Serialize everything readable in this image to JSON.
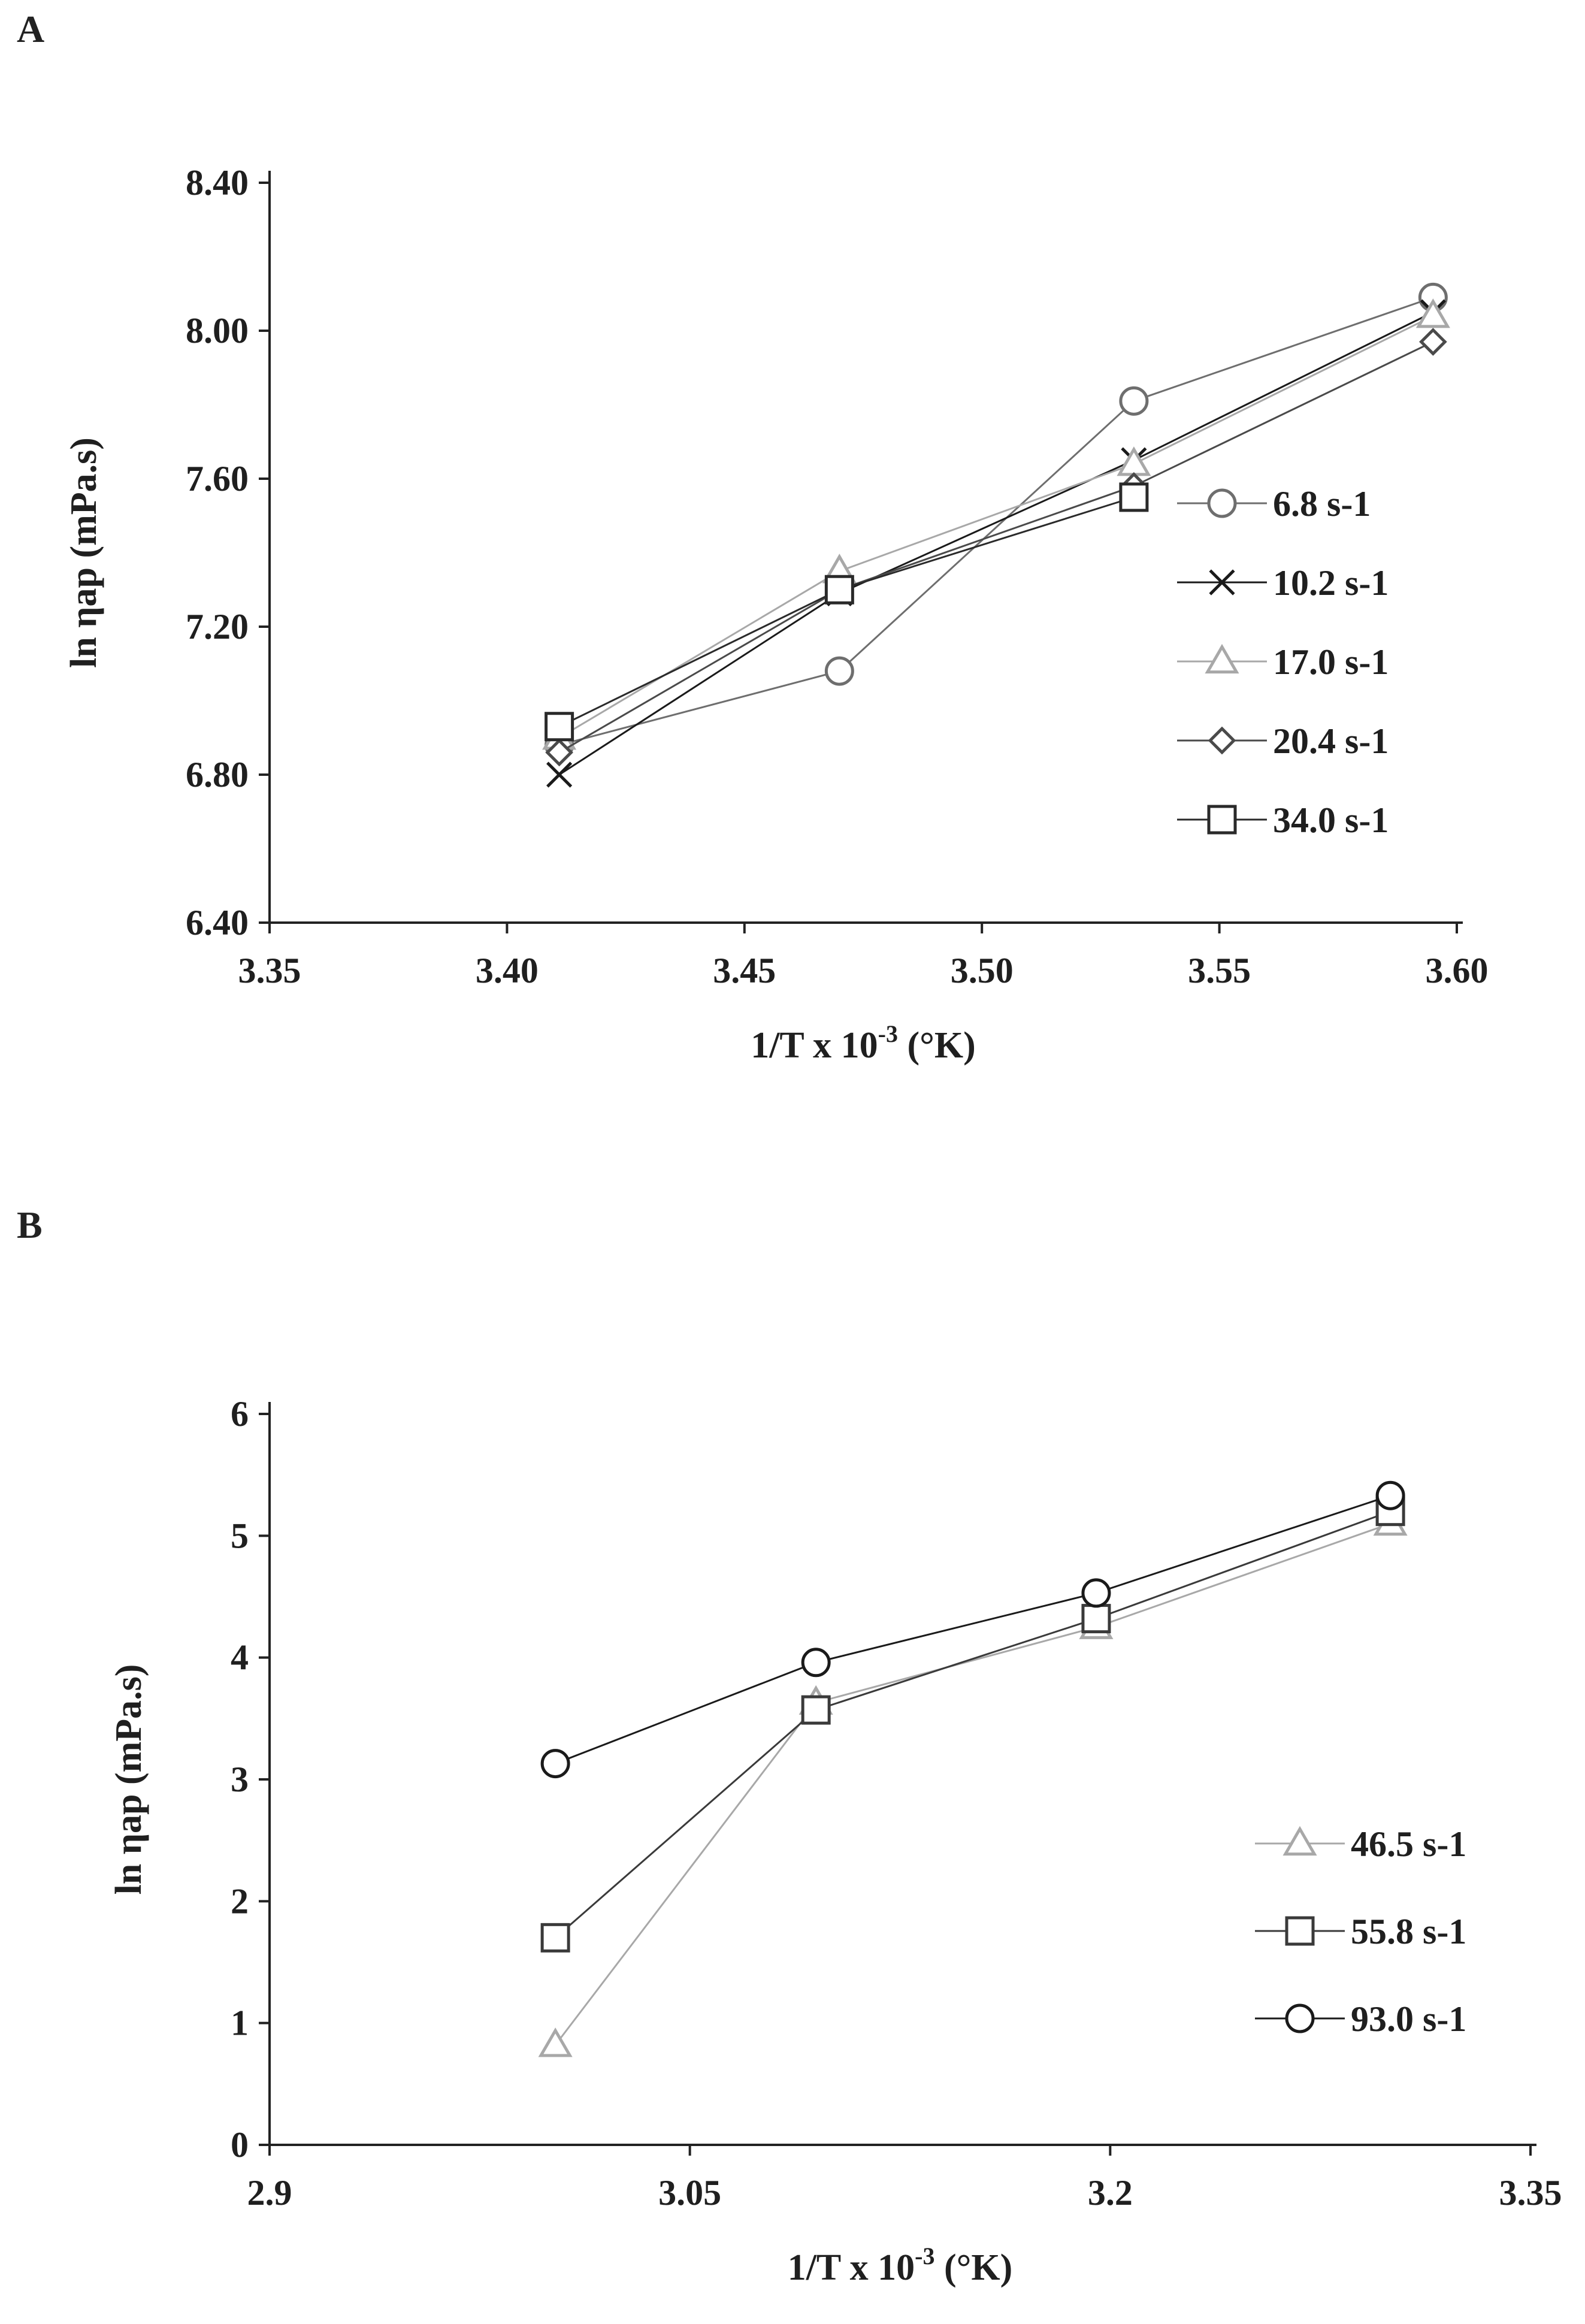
{
  "panels": [
    {
      "label": "A"
    },
    {
      "label": "B"
    }
  ],
  "chart_data": [
    {
      "type": "line",
      "title": "",
      "xlabel": "1/T x 10-3 (°K)",
      "xlabel_parts": {
        "base": "1/T x 10",
        "exp": "-3",
        "rest": " (°K)"
      },
      "ylabel": "ln ηap (mPa.s)",
      "xlim": [
        3.35,
        3.6
      ],
      "ylim": [
        6.4,
        8.4
      ],
      "xticks": [
        "3.35",
        "3.40",
        "3.45",
        "3.50",
        "3.55",
        "3.60"
      ],
      "yticks": [
        "6.40",
        "6.80",
        "7.20",
        "7.60",
        "8.00",
        "8.40"
      ],
      "xtick_values": [
        3.35,
        3.4,
        3.45,
        3.5,
        3.55,
        3.6
      ],
      "ytick_values": [
        6.4,
        6.8,
        7.2,
        7.6,
        8.0,
        8.4
      ],
      "grid": false,
      "legend_position": "right",
      "x": [
        3.411,
        3.47,
        3.532,
        3.595
      ],
      "series": [
        {
          "name": "6.8 s-1",
          "marker": "circle",
          "color": "#6e6e6e",
          "values": [
            6.88,
            7.08,
            7.81,
            8.09
          ]
        },
        {
          "name": "10.2 s-1",
          "marker": "x",
          "color": "#1a1a1a",
          "values": [
            6.8,
            7.29,
            7.65,
            8.05
          ]
        },
        {
          "name": "17.0 s-1",
          "marker": "triangle",
          "color": "#a8a8a8",
          "values": [
            6.9,
            7.35,
            7.64,
            8.04
          ]
        },
        {
          "name": "20.4 s-1",
          "marker": "diamond",
          "color": "#4a4a4a",
          "values": [
            6.86,
            7.3,
            7.58,
            7.97
          ]
        },
        {
          "name": "34.0 s-1",
          "marker": "square",
          "color": "#2a2a2a",
          "values": [
            6.93,
            7.3,
            7.55,
            null
          ]
        }
      ]
    },
    {
      "type": "line",
      "title": "",
      "xlabel": "1/T x 10-3 (°K)",
      "xlabel_parts": {
        "base": "1/T x 10",
        "exp": "-3",
        "rest": " (°K)"
      },
      "ylabel": "ln ηap (mPa.s)",
      "xlim": [
        2.9,
        3.35
      ],
      "ylim": [
        0,
        6
      ],
      "xticks": [
        "2.9",
        "3.05",
        "3.2",
        "3.35"
      ],
      "yticks": [
        "0",
        "1",
        "2",
        "3",
        "4",
        "5",
        "6"
      ],
      "xtick_values": [
        2.9,
        3.05,
        3.2,
        3.35
      ],
      "ytick_values": [
        0,
        1,
        2,
        3,
        4,
        5,
        6
      ],
      "grid": false,
      "legend_position": "bottom-right",
      "x": [
        3.002,
        3.095,
        3.195,
        3.3
      ],
      "series": [
        {
          "name": "46.5 s-1",
          "marker": "triangle",
          "color": "#a8a8a8",
          "values": [
            0.82,
            3.63,
            4.25,
            5.1
          ]
        },
        {
          "name": "55.8 s-1",
          "marker": "square",
          "color": "#3a3a3a",
          "values": [
            1.7,
            3.57,
            4.32,
            5.2
          ]
        },
        {
          "name": "93.0 s-1",
          "marker": "circle",
          "color": "#1a1a1a",
          "values": [
            3.13,
            3.96,
            4.53,
            5.33
          ]
        }
      ]
    }
  ]
}
